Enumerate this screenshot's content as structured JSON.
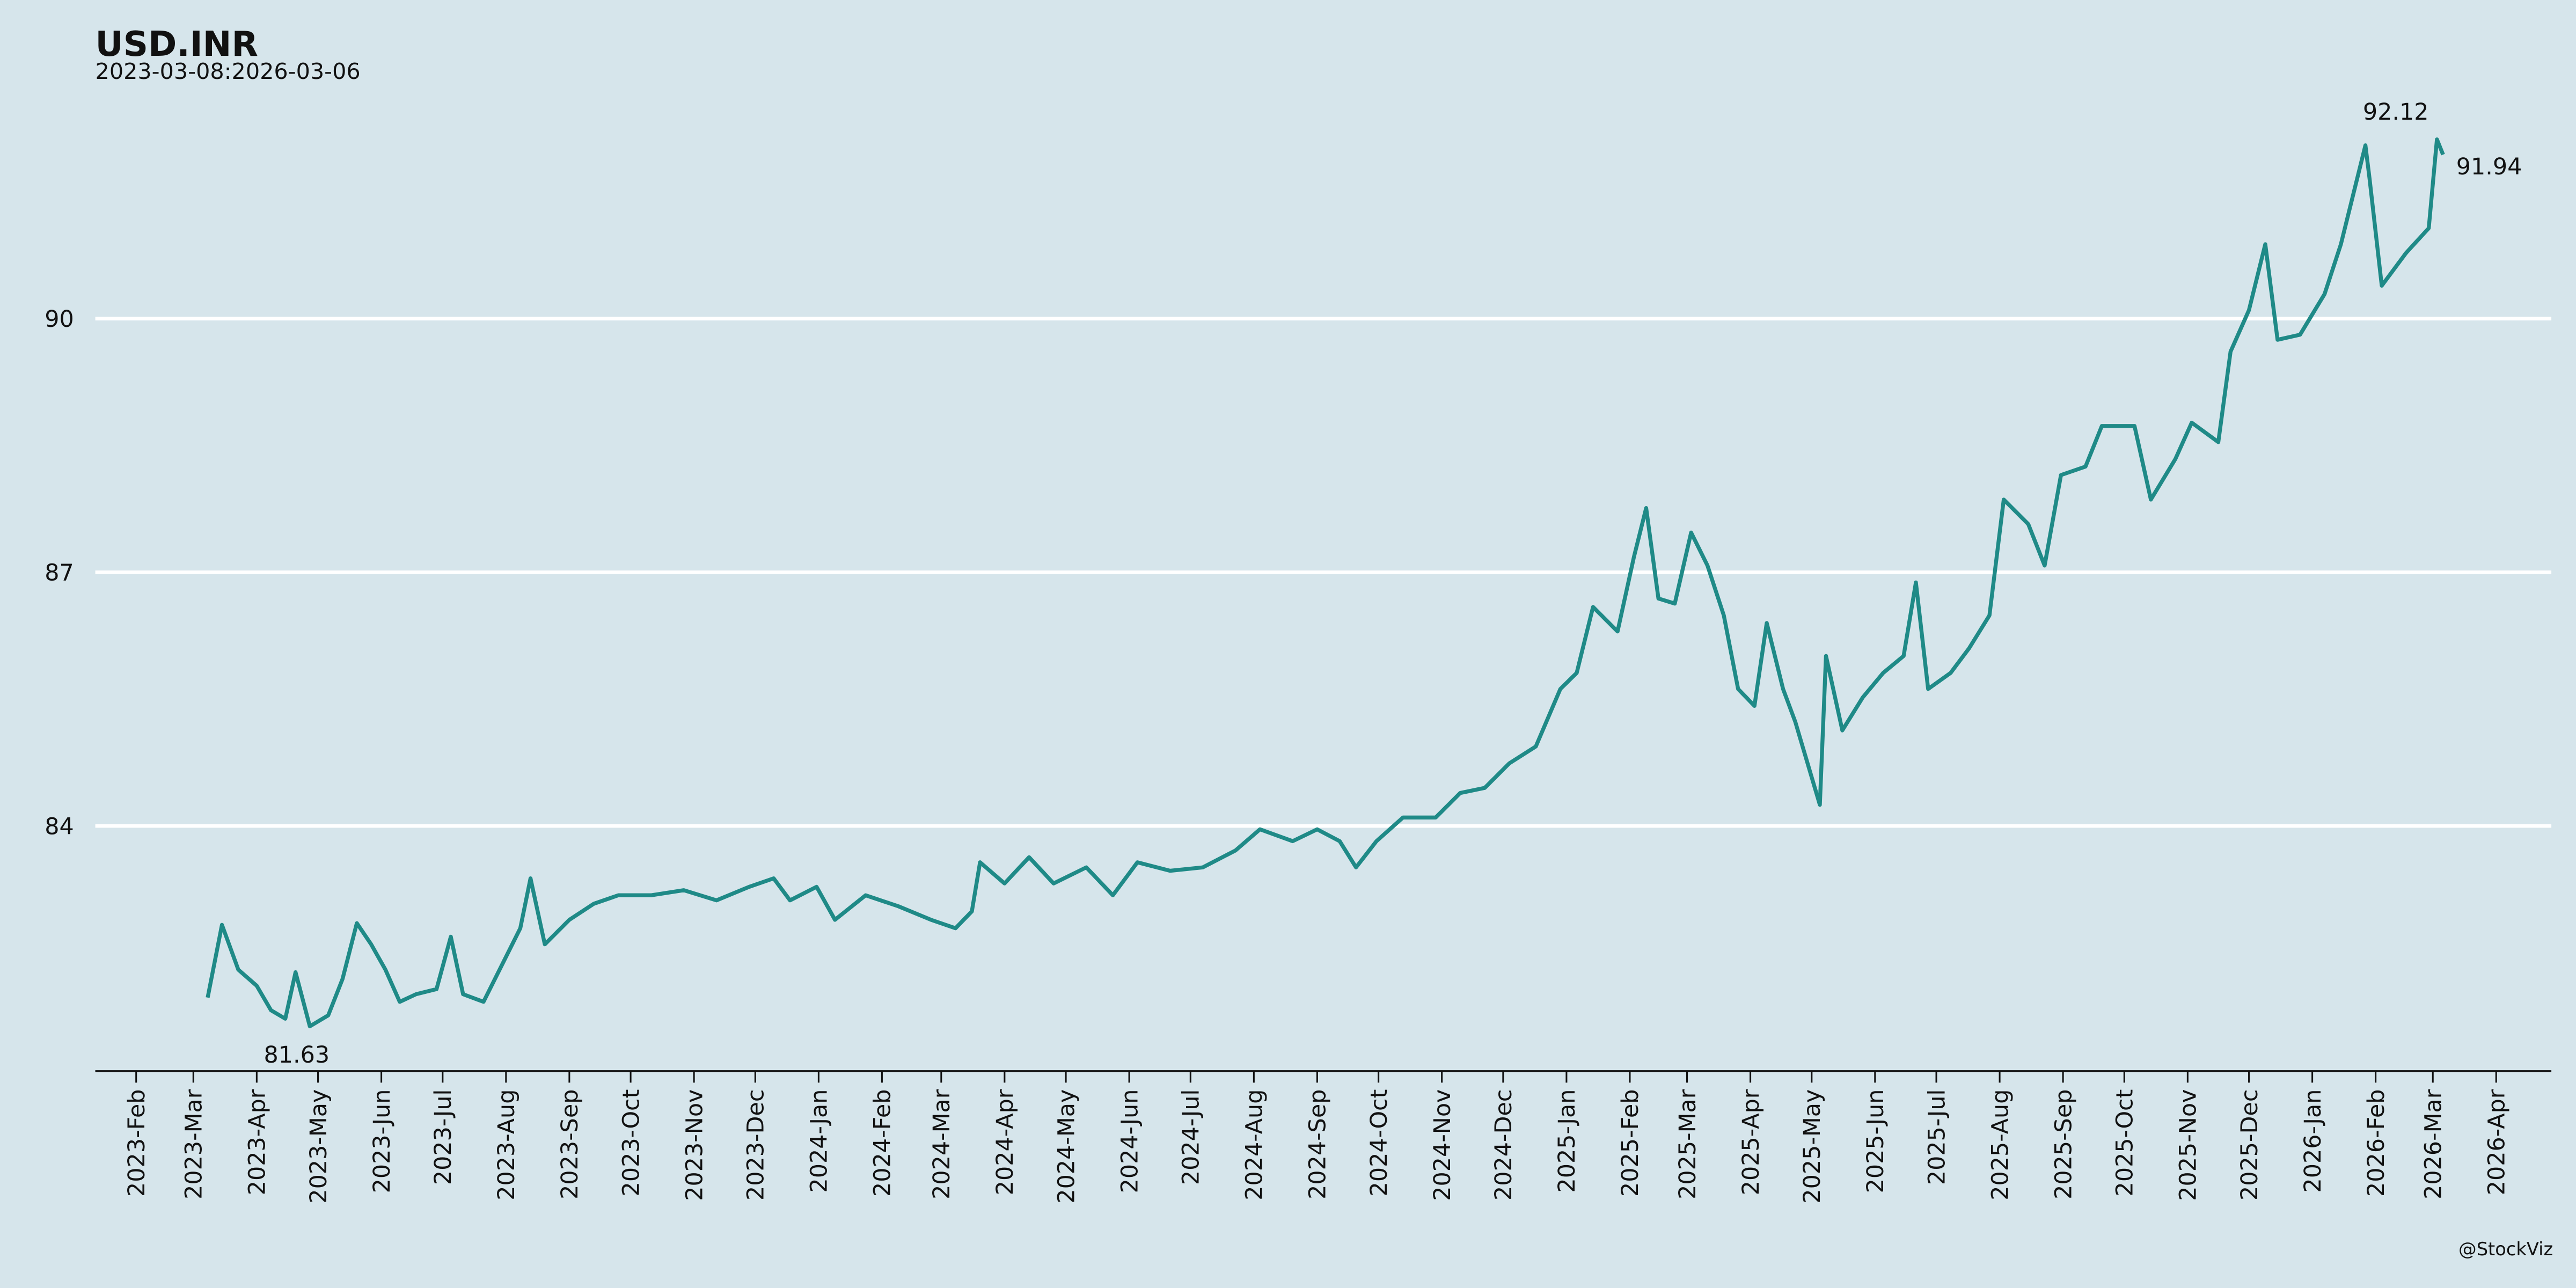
{
  "chart_data": {
    "type": "line",
    "title": "USD.INR",
    "subtitle": "2023-03-08:2026-03-06",
    "caption": "@StockViz",
    "series": [
      {
        "name": "USD.INR",
        "color": "#1f8a87",
        "x": [
          "2023-03-08",
          "2023-03-15",
          "2023-03-23",
          "2023-04-01",
          "2023-04-08",
          "2023-04-15",
          "2023-04-20",
          "2023-04-27",
          "2023-05-06",
          "2023-05-13",
          "2023-05-20",
          "2023-05-27",
          "2023-06-03",
          "2023-06-10",
          "2023-06-18",
          "2023-06-28",
          "2023-07-05",
          "2023-07-11",
          "2023-07-21",
          "2023-07-27",
          "2023-08-08",
          "2023-08-13",
          "2023-08-20",
          "2023-09-01",
          "2023-09-13",
          "2023-09-25",
          "2023-10-11",
          "2023-10-27",
          "2023-11-12",
          "2023-11-28",
          "2023-12-10",
          "2023-12-18",
          "2023-12-31",
          "2024-01-09",
          "2024-01-24",
          "2024-02-09",
          "2024-02-25",
          "2024-03-08",
          "2024-03-16",
          "2024-03-20",
          "2024-04-01",
          "2024-04-13",
          "2024-04-25",
          "2024-05-11",
          "2024-05-24",
          "2024-06-05",
          "2024-06-21",
          "2024-07-07",
          "2024-07-23",
          "2024-08-04",
          "2024-08-20",
          "2024-09-01",
          "2024-09-12",
          "2024-09-20",
          "2024-09-30",
          "2024-10-13",
          "2024-10-29",
          "2024-11-10",
          "2024-11-22",
          "2024-12-04",
          "2024-12-17",
          "2024-12-29",
          "2025-01-06",
          "2025-01-14",
          "2025-01-26",
          "2025-02-03",
          "2025-02-09",
          "2025-02-15",
          "2025-02-23",
          "2025-03-03",
          "2025-03-11",
          "2025-03-19",
          "2025-03-26",
          "2025-04-03",
          "2025-04-09",
          "2025-04-17",
          "2025-04-23",
          "2025-05-05",
          "2025-05-08",
          "2025-05-16",
          "2025-05-26",
          "2025-06-05",
          "2025-06-15",
          "2025-06-21",
          "2025-06-27",
          "2025-07-08",
          "2025-07-17",
          "2025-07-27",
          "2025-08-03",
          "2025-08-15",
          "2025-08-23",
          "2025-08-31",
          "2025-09-12",
          "2025-09-20",
          "2025-10-06",
          "2025-10-14",
          "2025-10-26",
          "2025-11-03",
          "2025-11-16",
          "2025-11-22",
          "2025-12-01",
          "2025-12-09",
          "2025-12-15",
          "2025-12-26",
          "2026-01-07",
          "2026-01-15",
          "2026-01-27",
          "2026-01-29",
          "2026-02-04",
          "2026-02-16",
          "2026-02-27",
          "2026-03-03",
          "2026-03-06"
        ],
        "values": [
          81.97,
          82.83,
          82.3,
          82.11,
          81.82,
          81.72,
          82.27,
          81.63,
          81.76,
          82.19,
          82.85,
          82.6,
          82.3,
          81.92,
          82.01,
          82.07,
          82.69,
          82.01,
          81.92,
          82.21,
          82.79,
          83.38,
          82.6,
          82.89,
          83.08,
          83.18,
          83.18,
          83.24,
          83.12,
          83.28,
          83.38,
          83.12,
          83.28,
          82.89,
          83.18,
          83.05,
          82.89,
          82.79,
          82.99,
          83.57,
          83.32,
          83.63,
          83.32,
          83.51,
          83.18,
          83.57,
          83.47,
          83.51,
          83.71,
          83.96,
          83.82,
          83.96,
          83.82,
          83.51,
          83.82,
          84.1,
          84.1,
          84.39,
          84.45,
          84.74,
          84.94,
          85.62,
          85.81,
          86.59,
          86.3,
          87.18,
          87.76,
          86.69,
          86.63,
          87.47,
          87.08,
          86.49,
          85.62,
          85.42,
          86.4,
          85.62,
          85.23,
          84.25,
          86.01,
          85.13,
          85.52,
          85.81,
          86.01,
          86.88,
          85.62,
          85.81,
          86.1,
          86.49,
          87.86,
          87.57,
          87.08,
          88.15,
          88.25,
          88.73,
          88.73,
          87.86,
          88.34,
          88.77,
          88.54,
          89.61,
          90.1,
          90.88,
          89.75,
          89.81,
          90.29,
          90.88,
          92.05,
          91.66,
          90.39,
          90.78,
          91.07,
          92.12,
          91.94
        ]
      }
    ],
    "annotations": [
      81.63,
      92.12,
      91.94
    ],
    "xlim": [
      "2023-01-12",
      "2026-04-28"
    ],
    "ylim": [
      81.1,
      92.7
    ],
    "yticks": [
      84,
      87,
      90
    ],
    "grid": true,
    "xticks": [
      {
        "value": "2023-02-01",
        "label": "2023-Feb"
      },
      {
        "value": "2023-03-01",
        "label": "2023-Mar"
      },
      {
        "value": "2023-04-01",
        "label": "2023-Apr"
      },
      {
        "value": "2023-05-01",
        "label": "2023-May"
      },
      {
        "value": "2023-06-01",
        "label": "2023-Jun"
      },
      {
        "value": "2023-07-01",
        "label": "2023-Jul"
      },
      {
        "value": "2023-08-01",
        "label": "2023-Aug"
      },
      {
        "value": "2023-09-01",
        "label": "2023-Sep"
      },
      {
        "value": "2023-10-01",
        "label": "2023-Oct"
      },
      {
        "value": "2023-11-01",
        "label": "2023-Nov"
      },
      {
        "value": "2023-12-01",
        "label": "2023-Dec"
      },
      {
        "value": "2024-01-01",
        "label": "2024-Jan"
      },
      {
        "value": "2024-02-01",
        "label": "2024-Feb"
      },
      {
        "value": "2024-03-01",
        "label": "2024-Mar"
      },
      {
        "value": "2024-04-01",
        "label": "2024-Apr"
      },
      {
        "value": "2024-05-01",
        "label": "2024-May"
      },
      {
        "value": "2024-06-01",
        "label": "2024-Jun"
      },
      {
        "value": "2024-07-01",
        "label": "2024-Jul"
      },
      {
        "value": "2024-08-01",
        "label": "2024-Aug"
      },
      {
        "value": "2024-09-01",
        "label": "2024-Sep"
      },
      {
        "value": "2024-10-01",
        "label": "2024-Oct"
      },
      {
        "value": "2024-11-01",
        "label": "2024-Nov"
      },
      {
        "value": "2024-12-01",
        "label": "2024-Dec"
      },
      {
        "value": "2025-01-01",
        "label": "2025-Jan"
      },
      {
        "value": "2025-02-01",
        "label": "2025-Feb"
      },
      {
        "value": "2025-03-01",
        "label": "2025-Mar"
      },
      {
        "value": "2025-04-01",
        "label": "2025-Apr"
      },
      {
        "value": "2025-05-01",
        "label": "2025-May"
      },
      {
        "value": "2025-06-01",
        "label": "2025-Jun"
      },
      {
        "value": "2025-07-01",
        "label": "2025-Jul"
      },
      {
        "value": "2025-08-01",
        "label": "2025-Aug"
      },
      {
        "value": "2025-09-01",
        "label": "2025-Sep"
      },
      {
        "value": "2025-10-01",
        "label": "2025-Oct"
      },
      {
        "value": "2025-11-01",
        "label": "2025-Nov"
      },
      {
        "value": "2025-12-01",
        "label": "2025-Dec"
      },
      {
        "value": "2026-01-01",
        "label": "2026-Jan"
      },
      {
        "value": "2026-02-01",
        "label": "2026-Feb"
      },
      {
        "value": "2026-03-01",
        "label": "2026-Mar"
      },
      {
        "value": "2026-04-01",
        "label": "2026-Apr"
      }
    ]
  }
}
